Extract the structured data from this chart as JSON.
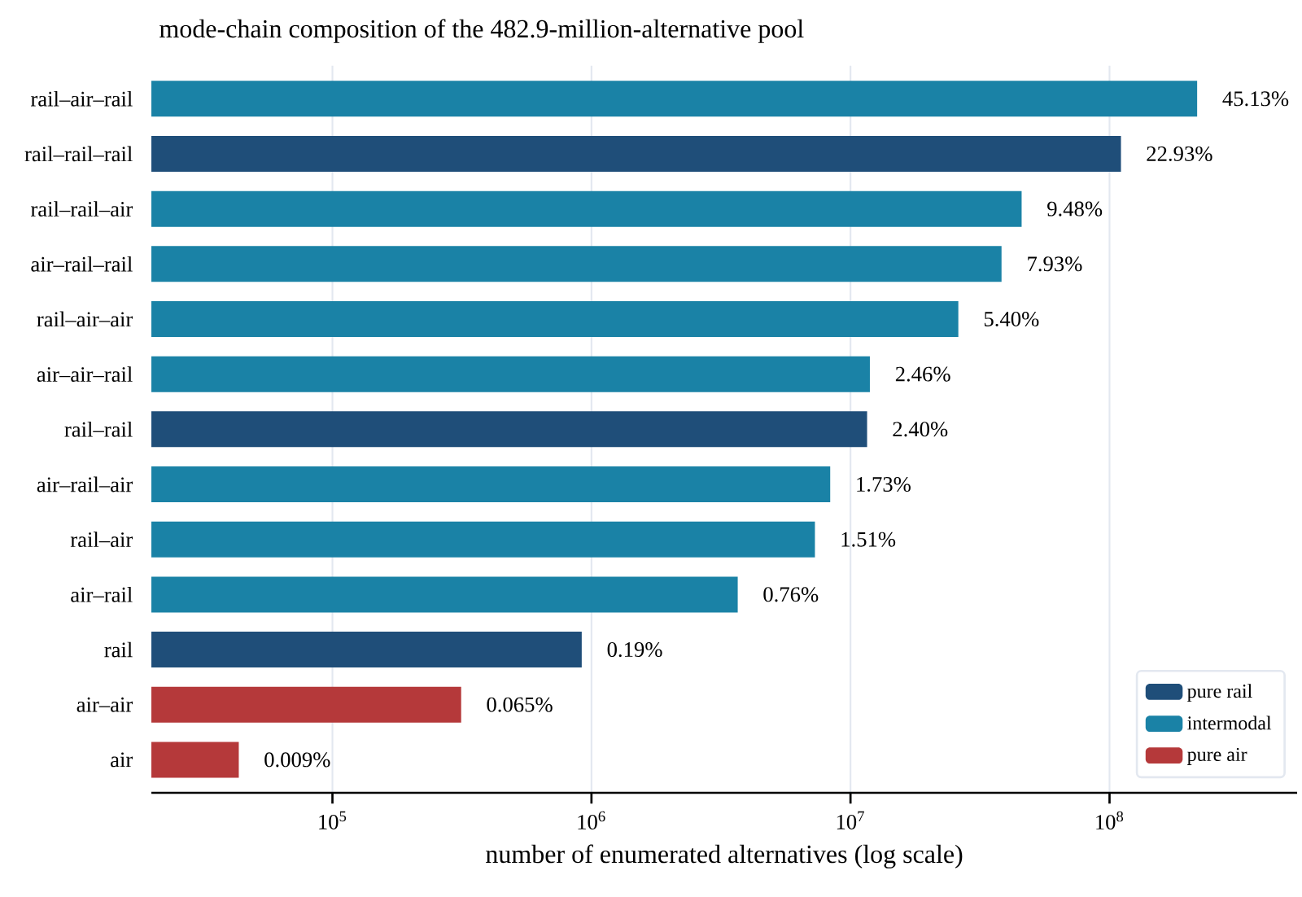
{
  "chart_data": {
    "type": "bar",
    "orientation": "horizontal",
    "title": "mode-chain composition of the 482.9-million-alternative pool",
    "xlabel": "number of enumerated alternatives (log scale)",
    "categories": [
      "rail–air–rail",
      "rail–rail–rail",
      "rail–rail–air",
      "air–rail–rail",
      "rail–air–air",
      "air–air–rail",
      "rail–rail",
      "air–rail–air",
      "rail–air",
      "air–rail",
      "rail",
      "air–air",
      "air"
    ],
    "series": [
      {
        "name": "pure rail",
        "color": "#1f4e79",
        "values": [
          null,
          110700000,
          null,
          null,
          null,
          null,
          11590000,
          null,
          null,
          null,
          917000,
          null,
          null
        ]
      },
      {
        "name": "intermodal",
        "color": "#1a82a6",
        "values": [
          217900000,
          null,
          45780000,
          38290000,
          26080000,
          11880000,
          null,
          8350000,
          7290000,
          3670000,
          null,
          null,
          null
        ]
      },
      {
        "name": "pure air",
        "color": "#b5393a",
        "values": [
          null,
          null,
          null,
          null,
          null,
          null,
          null,
          null,
          null,
          null,
          null,
          314000,
          43500
        ]
      }
    ],
    "value_labels": [
      "45.13%",
      "22.93%",
      "9.48%",
      "7.93%",
      "5.40%",
      "2.46%",
      "2.40%",
      "1.73%",
      "1.51%",
      "0.76%",
      "0.19%",
      "0.065%",
      "0.009%"
    ],
    "log": "x",
    "xlim": [
      20000,
      530000000
    ],
    "xticks": [
      {
        "value": 100000,
        "label": "10$^{5}$"
      },
      {
        "value": 1000000,
        "label": "10$^{6}$"
      },
      {
        "value": 10000000,
        "label": "10$^{7}$"
      },
      {
        "value": 100000000,
        "label": "10$^{8}$"
      }
    ],
    "grid": "x",
    "legend": "bottom right"
  }
}
